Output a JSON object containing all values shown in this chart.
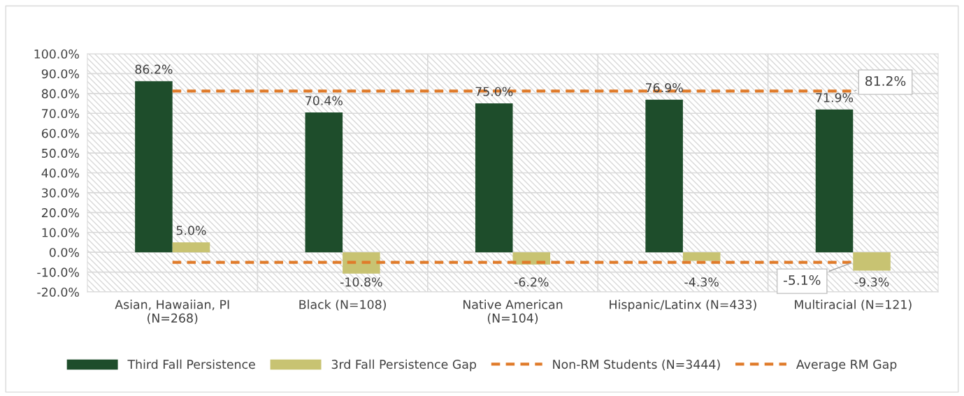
{
  "chart_data": {
    "type": "bar",
    "categories": [
      "Asian, Hawaiian, PI\n(N=268)",
      "Black (N=108)",
      "Native American\n(N=104)",
      "Hispanic/Latinx (N=433)",
      "Multiracial (N=121)"
    ],
    "series": [
      {
        "name": "Third Fall Persistence",
        "color": "#1e4d2b",
        "values": [
          86.2,
          70.4,
          75.0,
          76.9,
          71.9
        ],
        "value_labels": [
          "86.2%",
          "70.4%",
          "75.0%",
          "76.9%",
          "71.9%"
        ]
      },
      {
        "name": "3rd Fall Persistence Gap",
        "color": "#c8c372",
        "values": [
          5.0,
          -10.8,
          -6.2,
          -4.3,
          -9.3
        ],
        "value_labels": [
          "5.0%",
          "-10.8%",
          "-6.2%",
          "-4.3%",
          "-9.3%"
        ]
      },
      {
        "name": "Non-RM Students (N=3444)",
        "type": "line",
        "line_style": "dashed",
        "color": "#e07b2a",
        "values": [
          81.2,
          81.2,
          81.2,
          81.2,
          81.2
        ],
        "value_labels": [
          null,
          null,
          null,
          null,
          "81.2%"
        ]
      },
      {
        "name": "Average RM Gap",
        "type": "line",
        "line_style": "dashed",
        "color": "#e07b2a",
        "values": [
          -5.1,
          -5.1,
          -5.1,
          -5.1,
          -5.1
        ],
        "value_labels": [
          null,
          null,
          null,
          null,
          "-5.1%"
        ]
      }
    ],
    "ylim": [
      -20,
      100
    ],
    "yticks": [
      {
        "value": -20,
        "label": "-20.0%"
      },
      {
        "value": -10,
        "label": "-10.0%"
      },
      {
        "value": 0,
        "label": "0.0%"
      },
      {
        "value": 10,
        "label": "10.0%"
      },
      {
        "value": 20,
        "label": "20.0%"
      },
      {
        "value": 30,
        "label": "30.0%"
      },
      {
        "value": 40,
        "label": "40.0%"
      },
      {
        "value": 50,
        "label": "50.0%"
      },
      {
        "value": 60,
        "label": "60.0%"
      },
      {
        "value": 70,
        "label": "70.0%"
      },
      {
        "value": 80,
        "label": "80.0%"
      },
      {
        "value": 90,
        "label": "90.0%"
      },
      {
        "value": 100,
        "label": "100.0%"
      }
    ],
    "grid": true,
    "legend": "bottom",
    "marker": "none"
  }
}
